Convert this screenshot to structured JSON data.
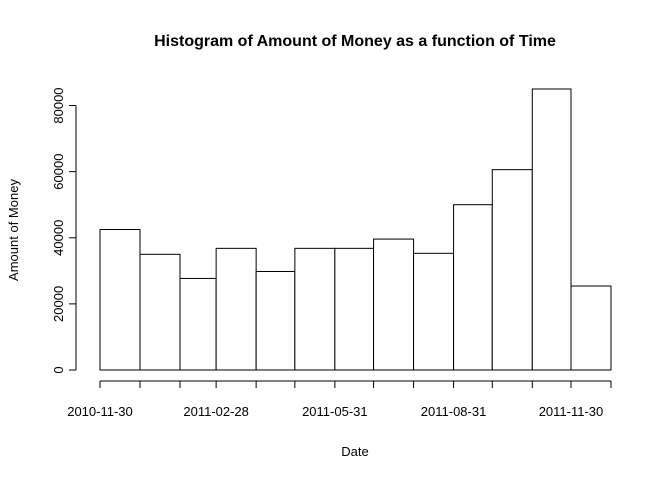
{
  "chart_data": {
    "type": "bar",
    "title": "Histogram of Amount of Money as a function of Time",
    "xlabel": "Date",
    "ylabel": "Amount of Money",
    "bins": [
      {
        "start": "2010-11-30",
        "end": "2010-12-31",
        "value": 42500
      },
      {
        "start": "2010-12-31",
        "end": "2011-01-31",
        "value": 35000
      },
      {
        "start": "2011-01-31",
        "end": "2011-02-28",
        "value": 27700
      },
      {
        "start": "2011-02-28",
        "end": "2011-03-31",
        "value": 36800
      },
      {
        "start": "2011-03-31",
        "end": "2011-04-30",
        "value": 29800
      },
      {
        "start": "2011-04-30",
        "end": "2011-05-31",
        "value": 36800
      },
      {
        "start": "2011-05-31",
        "end": "2011-06-30",
        "value": 36800
      },
      {
        "start": "2011-06-30",
        "end": "2011-07-31",
        "value": 39600
      },
      {
        "start": "2011-07-31",
        "end": "2011-08-31",
        "value": 35300
      },
      {
        "start": "2011-08-31",
        "end": "2011-09-30",
        "value": 50000
      },
      {
        "start": "2011-09-30",
        "end": "2011-10-31",
        "value": 60600
      },
      {
        "start": "2011-10-31",
        "end": "2011-11-30",
        "value": 85000
      },
      {
        "start": "2011-11-30",
        "end": "2011-12-31",
        "value": 25400
      }
    ],
    "x_ticks": [
      "2010-11-30",
      "2010-12-31",
      "2011-01-31",
      "2011-02-28",
      "2011-03-31",
      "2011-04-30",
      "2011-05-31",
      "2011-06-30",
      "2011-07-31",
      "2011-08-31",
      "2011-09-30",
      "2011-10-31",
      "2011-11-30",
      "2011-12-31"
    ],
    "x_tick_labels": [
      "2010-11-30",
      "",
      "",
      "2011-02-28",
      "",
      "",
      "2011-05-31",
      "",
      "",
      "2011-08-31",
      "",
      "",
      "2011-11-30",
      ""
    ],
    "y_ticks": [
      0,
      20000,
      40000,
      60000,
      80000
    ],
    "y_tick_labels": [
      "0",
      "20000",
      "40000",
      "60000",
      "80000"
    ],
    "ylim": [
      0,
      85000
    ],
    "grid": false,
    "legend": "none"
  }
}
